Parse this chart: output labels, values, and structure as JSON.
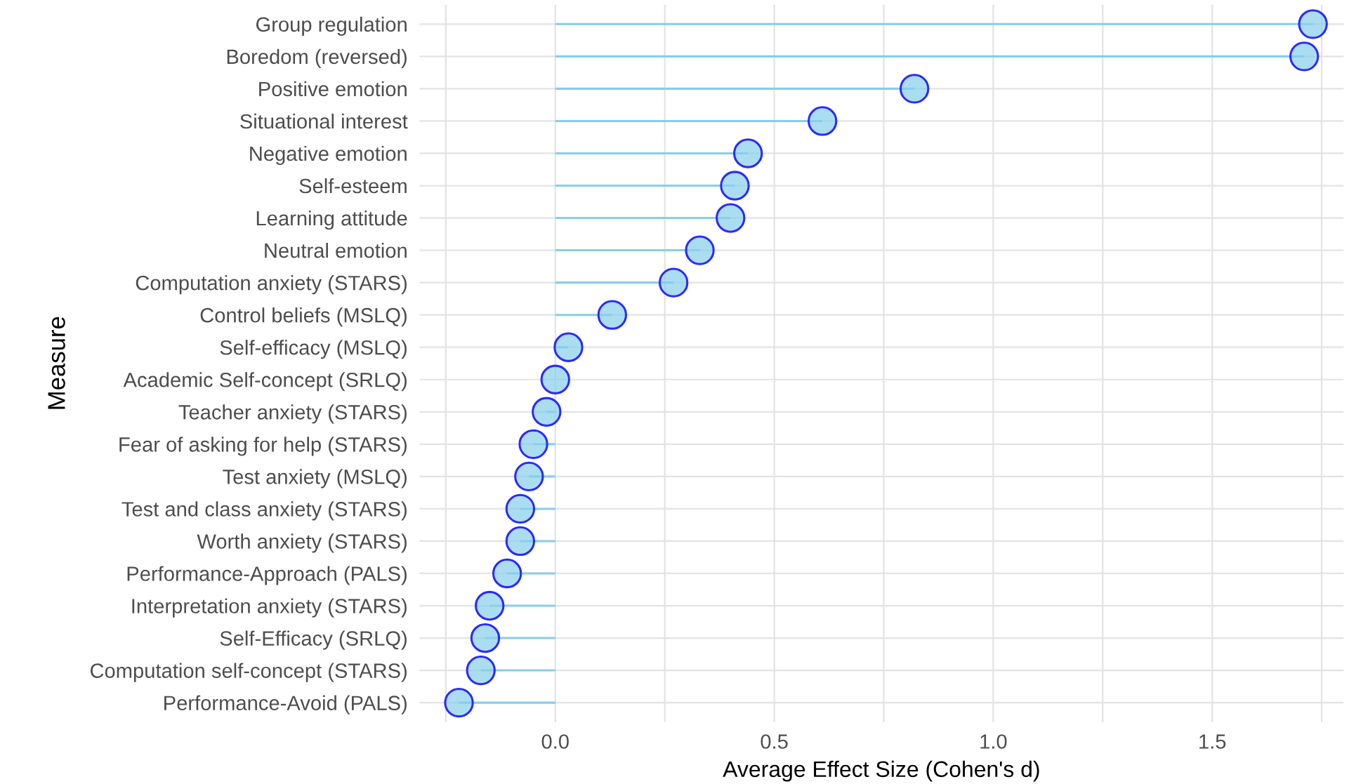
{
  "chart_data": {
    "type": "lollipop",
    "orientation": "horizontal",
    "xlabel": "Average Effect Size (Cohen's d)",
    "ylabel": "Measure",
    "categories": [
      "Group regulation",
      "Boredom (reversed)",
      "Positive emotion",
      "Situational interest",
      "Negative emotion",
      "Self-esteem",
      "Learning attitude",
      "Neutral emotion",
      "Computation anxiety (STARS)",
      "Control beliefs (MSLQ)",
      "Self-efficacy (MSLQ)",
      "Academic Self-concept (SRLQ)",
      "Teacher anxiety (STARS)",
      "Fear of asking for help (STARS)",
      "Test anxiety (MSLQ)",
      "Test and class anxiety (STARS)",
      "Worth anxiety (STARS)",
      "Performance-Approach (PALS)",
      "Interpretation anxiety (STARS)",
      "Self-Efficacy (SRLQ)",
      "Computation self-concept (STARS)",
      "Performance-Avoid (PALS)"
    ],
    "series": [
      {
        "color": "#87ceeb",
        "values": [
          1.73,
          1.71,
          0.82,
          0.61,
          0.44,
          0.41,
          0.4,
          0.33,
          0.27,
          0.13,
          0.03,
          0.0,
          -0.02,
          -0.05,
          -0.06,
          -0.08,
          -0.08,
          -0.11,
          -0.15,
          -0.16,
          -0.17,
          -0.22
        ]
      }
    ],
    "xlim": [
      -0.31,
      1.8
    ],
    "xticks": [
      {
        "value": -0.25,
        "label": null
      },
      {
        "value": 0,
        "label": "0.0"
      },
      {
        "value": 0.25,
        "label": null
      },
      0.5,
      {
        "value": 0.75,
        "label": null
      },
      {
        "value": 1,
        "label": "1.0"
      },
      {
        "value": 1.25,
        "label": null
      },
      1.5,
      {
        "value": 1.75,
        "label": null
      }
    ],
    "grid": true,
    "marker": "circle"
  }
}
